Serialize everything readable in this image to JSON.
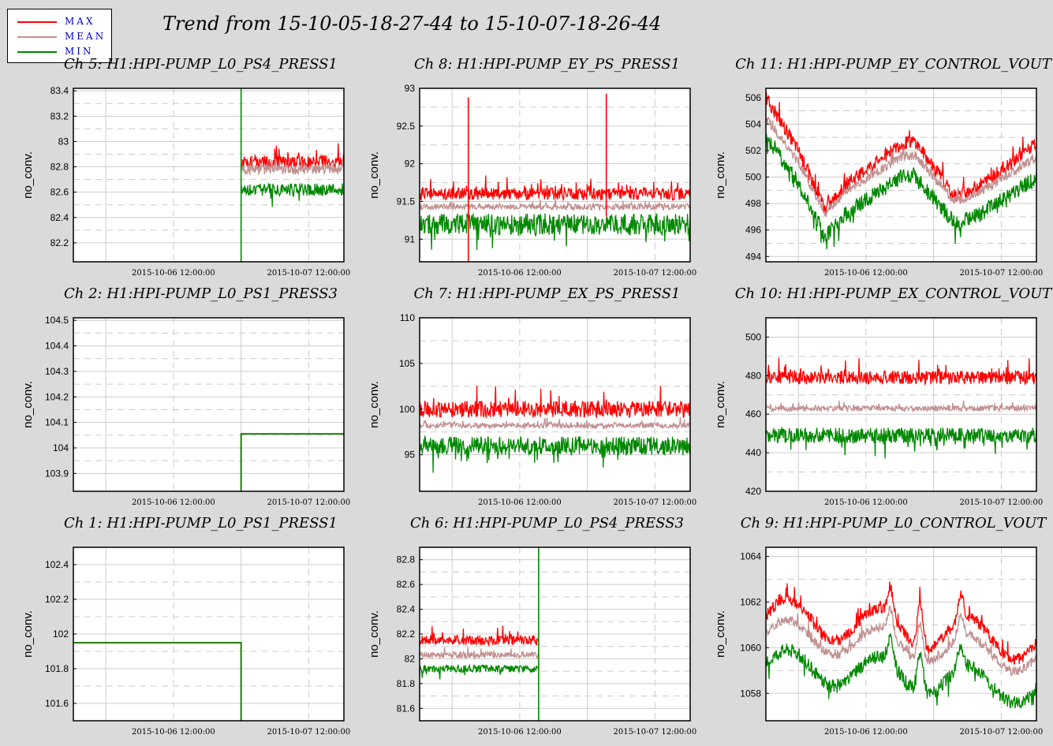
{
  "title": "Trend from 15-10-05-18-27-44 to 15-10-07-18-26-44",
  "legend": [
    {
      "label": "MAX",
      "color": "#ff0000"
    },
    {
      "label": "MEAN",
      "color": "#c09090"
    },
    {
      "label": "MIN",
      "color": "#008800"
    }
  ],
  "chart_data": [
    {
      "type": "line",
      "title": "Ch 5: H1:HPI-PUMP_L0_PS4_PRESS1",
      "ylabel": "no_conv.",
      "ylim": [
        82.05,
        83.42
      ],
      "yticks": [
        82.2,
        82.4,
        82.6,
        82.8,
        83,
        83.2,
        83.4
      ],
      "xticks": [
        "2015-10-06 12:00:00",
        "2015-10-07 12:00:00"
      ],
      "start": 0.62,
      "levels": [
        82.84,
        82.78,
        82.62
      ],
      "noise": [
        0.05,
        0.04,
        0.05
      ],
      "spikes": [
        {
          "x": 0.62,
          "y0": 82.05,
          "y1": 83.42
        }
      ],
      "drift": "flat"
    },
    {
      "type": "line",
      "title": "Ch 8: H1:HPI-PUMP_EY_PS_PRESS1",
      "ylabel": "no_conv.",
      "ylim": [
        90.7,
        93.0
      ],
      "yticks": [
        91,
        91.5,
        92,
        92.5,
        93
      ],
      "xticks": [
        "2015-10-06 12:00:00",
        "2015-10-07 12:00:00"
      ],
      "start": 0,
      "levels": [
        91.6,
        91.43,
        91.2
      ],
      "noise": [
        0.08,
        0.04,
        0.14
      ],
      "spikes": [
        {
          "x": 0.18,
          "y0": 90.7,
          "y1": 92.88
        },
        {
          "x": 0.69,
          "y0": 91.3,
          "y1": 92.93
        }
      ],
      "drift": "flat"
    },
    {
      "type": "line",
      "title": "Ch 11: H1:HPI-PUMP_EY_CONTROL_VOUT",
      "ylabel": "no_conv.",
      "ylim": [
        493.6,
        506.7
      ],
      "yticks": [
        494,
        496,
        498,
        500,
        502,
        504,
        506
      ],
      "xticks": [
        "2015-10-06 12:00:00",
        "2015-10-07 12:00:00"
      ],
      "start": 0,
      "levels": [
        502.5,
        501.5,
        500
      ],
      "noise": [
        0.5,
        0.35,
        0.6
      ],
      "spikes": [],
      "drift": "ey"
    },
    {
      "type": "line",
      "title": "Ch 2: H1:HPI-PUMP_L0_PS1_PRESS3",
      "ylabel": "no_conv.",
      "ylim": [
        103.83,
        104.51
      ],
      "yticks": [
        103.9,
        104,
        104.1,
        104.2,
        104.3,
        104.4,
        104.5
      ],
      "xticks": [
        "2015-10-06 12:00:00",
        "2015-10-07 12:00:00"
      ],
      "start": 0,
      "levels": [
        104.055
      ],
      "noise": [
        0
      ],
      "spikes": [],
      "drift": "step-up",
      "step": 0.62
    },
    {
      "type": "line",
      "title": "Ch 7: H1:HPI-PUMP_EX_PS_PRESS1",
      "ylabel": "no_conv.",
      "ylim": [
        91,
        110
      ],
      "yticks": [
        95,
        100,
        105,
        110
      ],
      "xticks": [
        "2015-10-06 12:00:00",
        "2015-10-07 12:00:00"
      ],
      "start": 0,
      "levels": [
        100,
        98.2,
        96
      ],
      "noise": [
        0.9,
        0.3,
        1.0
      ],
      "spikes": [],
      "drift": "flat"
    },
    {
      "type": "line",
      "title": "Ch 10: H1:HPI-PUMP_EX_CONTROL_VOUT",
      "ylabel": "no_conv.",
      "ylim": [
        420,
        510
      ],
      "yticks": [
        420,
        440,
        460,
        480,
        500
      ],
      "xticks": [
        "2015-10-06 12:00:00",
        "2015-10-07 12:00:00"
      ],
      "start": 0,
      "levels": [
        479,
        463,
        449
      ],
      "noise": [
        3.5,
        1.5,
        4.0
      ],
      "spikes": [],
      "drift": "flat"
    },
    {
      "type": "line",
      "title": "Ch 1: H1:HPI-PUMP_L0_PS1_PRESS1",
      "ylabel": "no_conv.",
      "ylim": [
        101.5,
        102.5
      ],
      "yticks": [
        101.6,
        101.8,
        102,
        102.2,
        102.4
      ],
      "xticks": [
        "2015-10-06 12:00:00",
        "2015-10-07 12:00:00"
      ],
      "start": 0,
      "levels": [
        101.95
      ],
      "noise": [
        0
      ],
      "spikes": [],
      "drift": "step-down",
      "step": 0.62
    },
    {
      "type": "line",
      "title": "Ch 6: H1:HPI-PUMP_L0_PS4_PRESS3",
      "ylabel": "no_conv.",
      "ylim": [
        81.5,
        82.9
      ],
      "yticks": [
        81.6,
        81.8,
        82,
        82.2,
        82.4,
        82.6,
        82.8
      ],
      "xticks": [
        "2015-10-06 12:00:00",
        "2015-10-07 12:00:00"
      ],
      "start": 0,
      "end": 0.44,
      "levels": [
        82.15,
        82.03,
        81.92
      ],
      "noise": [
        0.04,
        0.025,
        0.03
      ],
      "spikes": [
        {
          "x": 0.44,
          "y0": 81.5,
          "y1": 82.9
        }
      ],
      "drift": "flat"
    },
    {
      "type": "line",
      "title": "Ch 9: H1:HPI-PUMP_L0_CONTROL_VOUT",
      "ylabel": "no_conv.",
      "ylim": [
        1056.8,
        1064.4
      ],
      "yticks": [
        1058,
        1060,
        1062,
        1064
      ],
      "xticks": [
        "2015-10-06 12:00:00",
        "2015-10-07 12:00:00"
      ],
      "start": 0,
      "levels": [
        1061.4,
        1060.6,
        1059.3
      ],
      "noise": [
        0.25,
        0.2,
        0.3
      ],
      "spikes": [],
      "drift": "l0"
    }
  ]
}
